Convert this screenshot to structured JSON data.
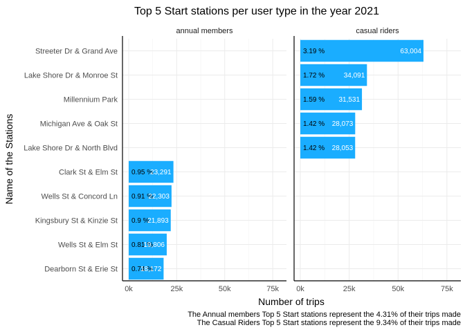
{
  "chart_data": {
    "type": "bar",
    "orientation": "horizontal",
    "title": "Top 5 Start stations per user type in the year 2021",
    "xlabel": "Number of trips",
    "ylabel": "Name of the Stations",
    "xlim": [
      0,
      80000
    ],
    "x_ticks": [
      0,
      25000,
      50000,
      75000
    ],
    "x_tick_labels": [
      "0k",
      "25k",
      "50k",
      "75k"
    ],
    "categories": [
      "Streeter Dr & Grand Ave",
      "Lake Shore Dr & Monroe St",
      "Millennium Park",
      "Michigan Ave & Oak St",
      "Lake Shore Dr & North Blvd",
      "Clark St & Elm St",
      "Wells St & Concord Ln",
      "Kingsbury St & Kinzie St",
      "Wells St & Elm St",
      "Dearborn St & Erie St"
    ],
    "facets": [
      {
        "name": "annual members",
        "bars": [
          {
            "category": "Clark St & Elm St",
            "value": 23291,
            "value_label": "23,291",
            "pct_label": "0.95 %"
          },
          {
            "category": "Wells St & Concord Ln",
            "value": 22303,
            "value_label": "22,303",
            "pct_label": "0.91 %"
          },
          {
            "category": "Kingsbury St & Kinzie St",
            "value": 21893,
            "value_label": "21,893",
            "pct_label": "0.9 %"
          },
          {
            "category": "Wells St & Elm St",
            "value": 19806,
            "value_label": "19,806",
            "pct_label": "0.81 %"
          },
          {
            "category": "Dearborn St & Erie St",
            "value": 18172,
            "value_label": "18,172",
            "pct_label": "0.74 %"
          }
        ]
      },
      {
        "name": "casual riders",
        "bars": [
          {
            "category": "Streeter Dr & Grand Ave",
            "value": 63004,
            "value_label": "63,004",
            "pct_label": "3.19 %"
          },
          {
            "category": "Lake Shore Dr & Monroe St",
            "value": 34091,
            "value_label": "34,091",
            "pct_label": "1.72 %"
          },
          {
            "category": "Millennium Park",
            "value": 31531,
            "value_label": "31,531",
            "pct_label": "1.59 %"
          },
          {
            "category": "Michigan Ave & Oak St",
            "value": 28073,
            "value_label": "28,073",
            "pct_label": "1.42 %"
          },
          {
            "category": "Lake Shore Dr & North Blvd",
            "value": 28053,
            "value_label": "28,053",
            "pct_label": "1.42 %"
          }
        ]
      }
    ],
    "bar_color": "#1AADFF",
    "grid": true,
    "legend": "none",
    "captions": [
      "The Annual members Top 5 Start stations represent the 4.31% of their trips made",
      "The Casual Riders Top 5 Start stations represent the 9.34% of their trips made"
    ]
  }
}
